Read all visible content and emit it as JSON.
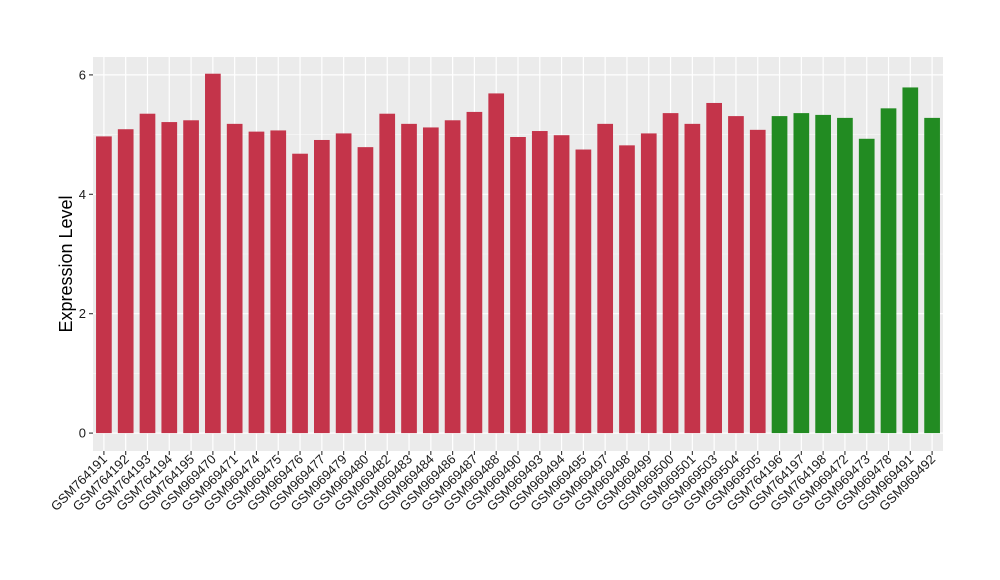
{
  "chart_data": {
    "type": "bar",
    "title": "",
    "xlabel": "",
    "ylabel": "Expression Level",
    "ylim": [
      -0.3,
      6.3
    ],
    "yticks": [
      0,
      2,
      4,
      6
    ],
    "grid": true,
    "legend": "none",
    "colors": {
      "panel_bg": "#EBEBEB",
      "grid_major": "#FFFFFF",
      "group_a": "#C4344A",
      "group_b": "#228B22"
    },
    "categories": [
      "GSM764191",
      "GSM764192",
      "GSM764193",
      "GSM764194",
      "GSM764195",
      "GSM969470",
      "GSM969471",
      "GSM969474",
      "GSM969475",
      "GSM969476",
      "GSM969477",
      "GSM969479",
      "GSM969480",
      "GSM969482",
      "GSM969483",
      "GSM969484",
      "GSM969486",
      "GSM969487",
      "GSM969488",
      "GSM969490",
      "GSM969493",
      "GSM969494",
      "GSM969495",
      "GSM969497",
      "GSM969498",
      "GSM969499",
      "GSM969500",
      "GSM969501",
      "GSM969503",
      "GSM969504",
      "GSM969505",
      "GSM764196",
      "GSM764197",
      "GSM764198",
      "GSM969472",
      "GSM969473",
      "GSM969478",
      "GSM969491",
      "GSM969492"
    ],
    "values": [
      4.97,
      5.09,
      5.35,
      5.21,
      5.24,
      6.02,
      5.18,
      5.05,
      5.07,
      4.68,
      4.91,
      5.02,
      4.79,
      5.35,
      5.18,
      5.12,
      5.24,
      5.38,
      5.69,
      4.96,
      5.06,
      4.99,
      4.75,
      5.18,
      4.82,
      5.02,
      5.36,
      5.18,
      5.53,
      5.31,
      5.08,
      5.31,
      5.36,
      5.33,
      5.28,
      4.93,
      5.44,
      5.79,
      5.28
    ],
    "bar_colors": [
      "#C4344A",
      "#C4344A",
      "#C4344A",
      "#C4344A",
      "#C4344A",
      "#C4344A",
      "#C4344A",
      "#C4344A",
      "#C4344A",
      "#C4344A",
      "#C4344A",
      "#C4344A",
      "#C4344A",
      "#C4344A",
      "#C4344A",
      "#C4344A",
      "#C4344A",
      "#C4344A",
      "#C4344A",
      "#C4344A",
      "#C4344A",
      "#C4344A",
      "#C4344A",
      "#C4344A",
      "#C4344A",
      "#C4344A",
      "#C4344A",
      "#C4344A",
      "#C4344A",
      "#C4344A",
      "#C4344A",
      "#228B22",
      "#228B22",
      "#228B22",
      "#228B22",
      "#228B22",
      "#228B22",
      "#228B22",
      "#228B22"
    ]
  }
}
